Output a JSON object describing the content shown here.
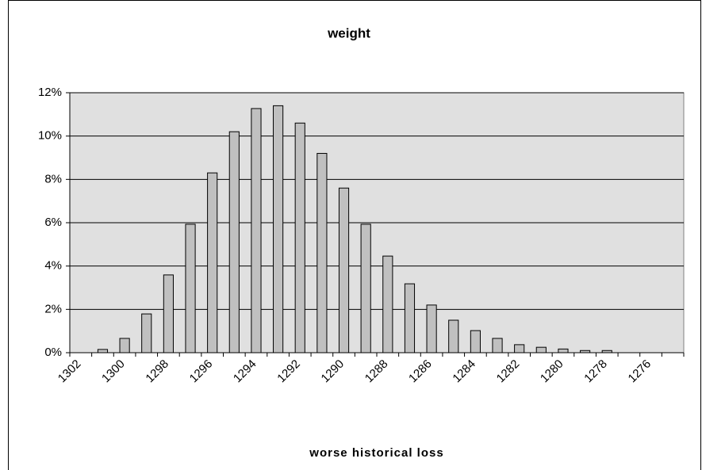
{
  "chart_data": {
    "type": "bar",
    "title": "weight",
    "x_label": "worse historical loss",
    "categories": [
      "1302",
      null,
      "1300",
      null,
      "1298",
      null,
      "1296",
      null,
      "1294",
      null,
      "1292",
      null,
      "1290",
      null,
      "1288",
      null,
      "1286",
      null,
      "1284",
      null,
      "1282",
      null,
      "1280",
      null,
      "1278",
      null,
      "1276",
      null
    ],
    "values": [
      0,
      0.15,
      0.66,
      1.79,
      3.59,
      5.93,
      8.3,
      10.2,
      11.27,
      11.4,
      10.6,
      9.2,
      7.6,
      5.93,
      4.46,
      3.18,
      2.2,
      1.5,
      1.02,
      0.66,
      0.37,
      0.25,
      0.17,
      0.1,
      0.1,
      0,
      0,
      0
    ],
    "color": "#c0c0c0",
    "ylim": [
      0,
      12
    ],
    "yticks": [
      {
        "value": 0,
        "label": "0%"
      },
      {
        "value": 2,
        "label": "2%"
      },
      {
        "value": 4,
        "label": "4%"
      },
      {
        "value": 6,
        "label": "6%"
      },
      {
        "value": 8,
        "label": "8%"
      },
      {
        "value": 10,
        "label": "10%"
      },
      {
        "value": 12,
        "label": "12%"
      }
    ],
    "grid": true
  }
}
